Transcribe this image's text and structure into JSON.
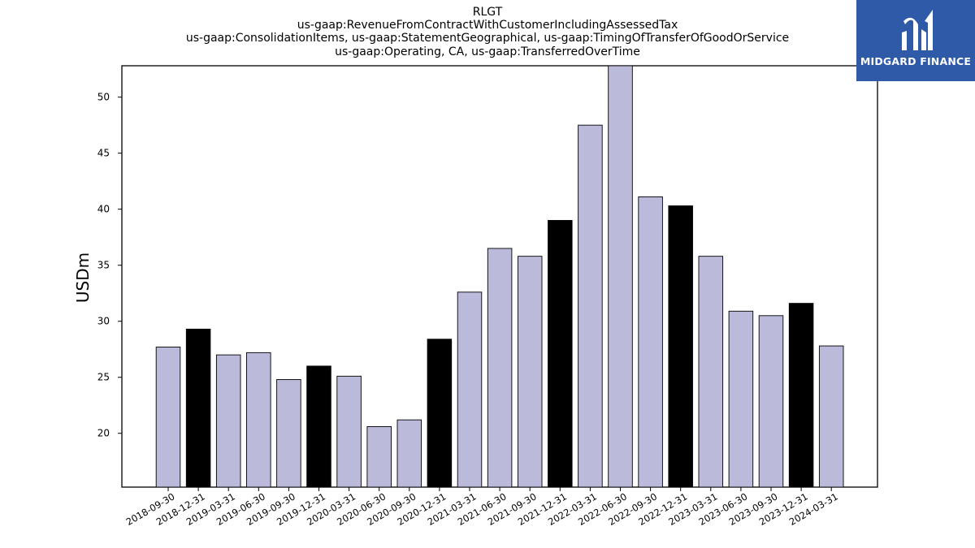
{
  "chart_data": {
    "type": "bar",
    "title_lines": [
      "RLGT",
      "us-gaap:RevenueFromContractWithCustomerIncludingAssessedTax",
      "us-gaap:ConsolidationItems, us-gaap:StatementGeographical, us-gaap:TimingOfTransferOfGoodOrService",
      "us-gaap:Operating, CA, us-gaap:TransferredOverTime"
    ],
    "ylabel": "USDm",
    "xlabel": "",
    "ylim": [
      15.2,
      52.8
    ],
    "yticks": [
      20,
      25,
      30,
      35,
      40,
      45,
      50
    ],
    "categories": [
      "2018-09-30",
      "2018-12-31",
      "2019-03-31",
      "2019-06-30",
      "2019-09-30",
      "2019-12-31",
      "2020-03-31",
      "2020-06-30",
      "2020-09-30",
      "2020-12-31",
      "2021-03-31",
      "2021-06-30",
      "2021-09-30",
      "2021-12-31",
      "2022-03-31",
      "2022-06-30",
      "2022-09-30",
      "2022-12-31",
      "2023-03-31",
      "2023-06-30",
      "2023-09-30",
      "2023-12-31",
      "2024-03-31"
    ],
    "values": [
      27.7,
      29.3,
      27.0,
      27.2,
      24.8,
      26.0,
      25.1,
      20.6,
      21.2,
      28.4,
      32.6,
      36.5,
      35.8,
      39.0,
      47.5,
      53.0,
      41.1,
      40.3,
      35.8,
      30.9,
      30.5,
      31.6,
      27.8
    ],
    "highlighted": [
      false,
      true,
      false,
      false,
      false,
      true,
      false,
      false,
      false,
      true,
      false,
      false,
      false,
      true,
      false,
      false,
      false,
      true,
      false,
      false,
      false,
      true,
      false
    ],
    "colors": {
      "bar": "#bcbadb",
      "highlight": "#000000",
      "edge": "#000000"
    },
    "grid": false
  },
  "logo": {
    "text": "MIDGARD FINANCE",
    "background": "#2f5aa8"
  }
}
